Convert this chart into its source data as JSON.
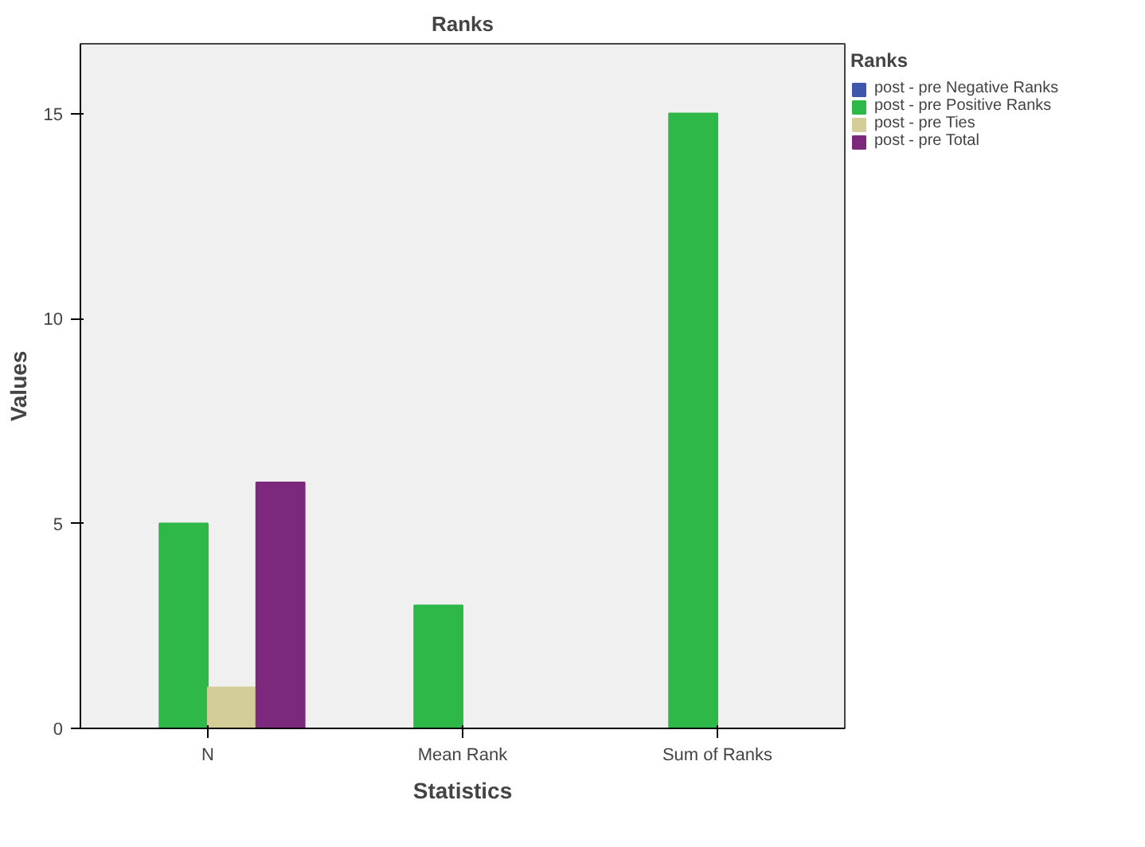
{
  "chart_data": {
    "type": "bar",
    "title": "Ranks",
    "xlabel": "Statistics",
    "ylabel": "Values",
    "legend_title": "Ranks",
    "categories": [
      "N",
      "Mean Rank",
      "Sum of Ranks"
    ],
    "series": [
      {
        "name": "post - pre Negative Ranks",
        "color": "#3e58ac",
        "values": [
          0,
          0,
          0
        ]
      },
      {
        "name": "post - pre Positive Ranks",
        "color": "#2eb848",
        "values": [
          5,
          3,
          15
        ]
      },
      {
        "name": "post - pre Ties",
        "color": "#d3ce97",
        "values": [
          1,
          null,
          null
        ]
      },
      {
        "name": "post - pre Total",
        "color": "#7c287d",
        "values": [
          6,
          null,
          null
        ]
      }
    ],
    "ylim": [
      0,
      16.7
    ],
    "yticks": [
      0,
      5,
      10,
      15
    ],
    "grid": false,
    "legend": "top right"
  }
}
